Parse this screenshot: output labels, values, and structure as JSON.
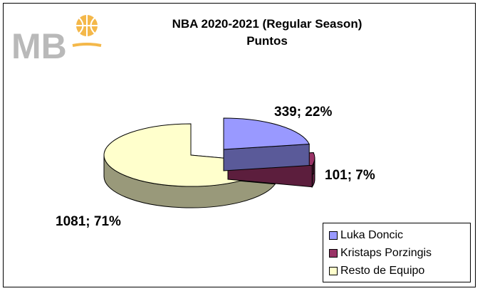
{
  "logo": {
    "text": "MB",
    "icon": "basketball-icon",
    "colors": {
      "letters": "#b9b9b9",
      "accent": "#f4b84a"
    }
  },
  "chart_data": {
    "type": "pie",
    "title": "NBA 2020-2021 (Regular Season)",
    "subtitle": "Puntos",
    "slices": [
      {
        "name": "Luka Doncic",
        "value": 339,
        "percent": 22,
        "label": "339; 22%",
        "color": "#9999ff",
        "side_color": "#5a5a99"
      },
      {
        "name": "Kristaps Porzingis",
        "value": 101,
        "percent": 7,
        "label": "101; 7%",
        "color": "#993366",
        "side_color": "#5c1e3d"
      },
      {
        "name": "Resto de Equipo",
        "value": 1081,
        "percent": 71,
        "label": "1081; 71%",
        "color": "#ffffcc",
        "side_color": "#99997a"
      }
    ],
    "legend_position": "bottom-right",
    "style": "3d-exploded"
  }
}
